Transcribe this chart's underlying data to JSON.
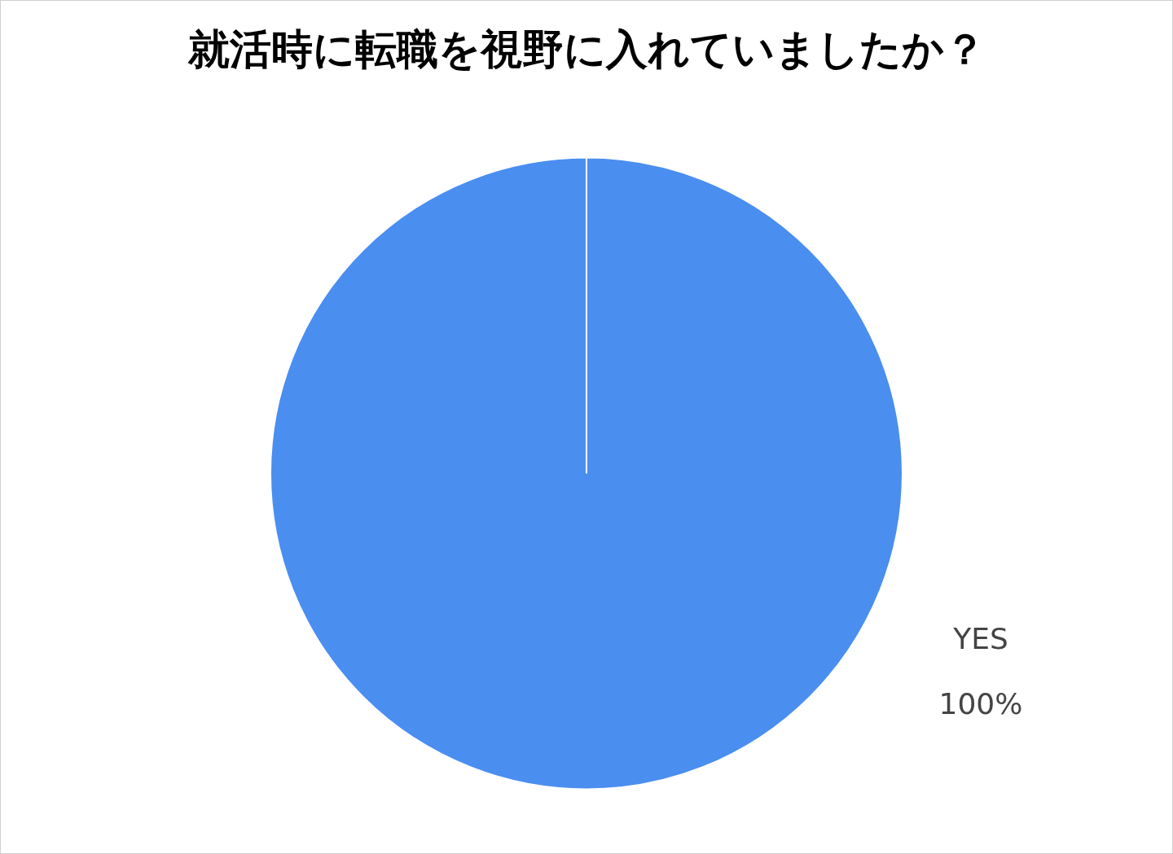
{
  "chart_data": {
    "type": "pie",
    "title": "就活時に転職を視野に入れていましたか？",
    "categories": [
      "YES"
    ],
    "values": [
      100
    ],
    "value_labels": [
      "100%"
    ],
    "colors": [
      "#4a8ef0"
    ]
  }
}
